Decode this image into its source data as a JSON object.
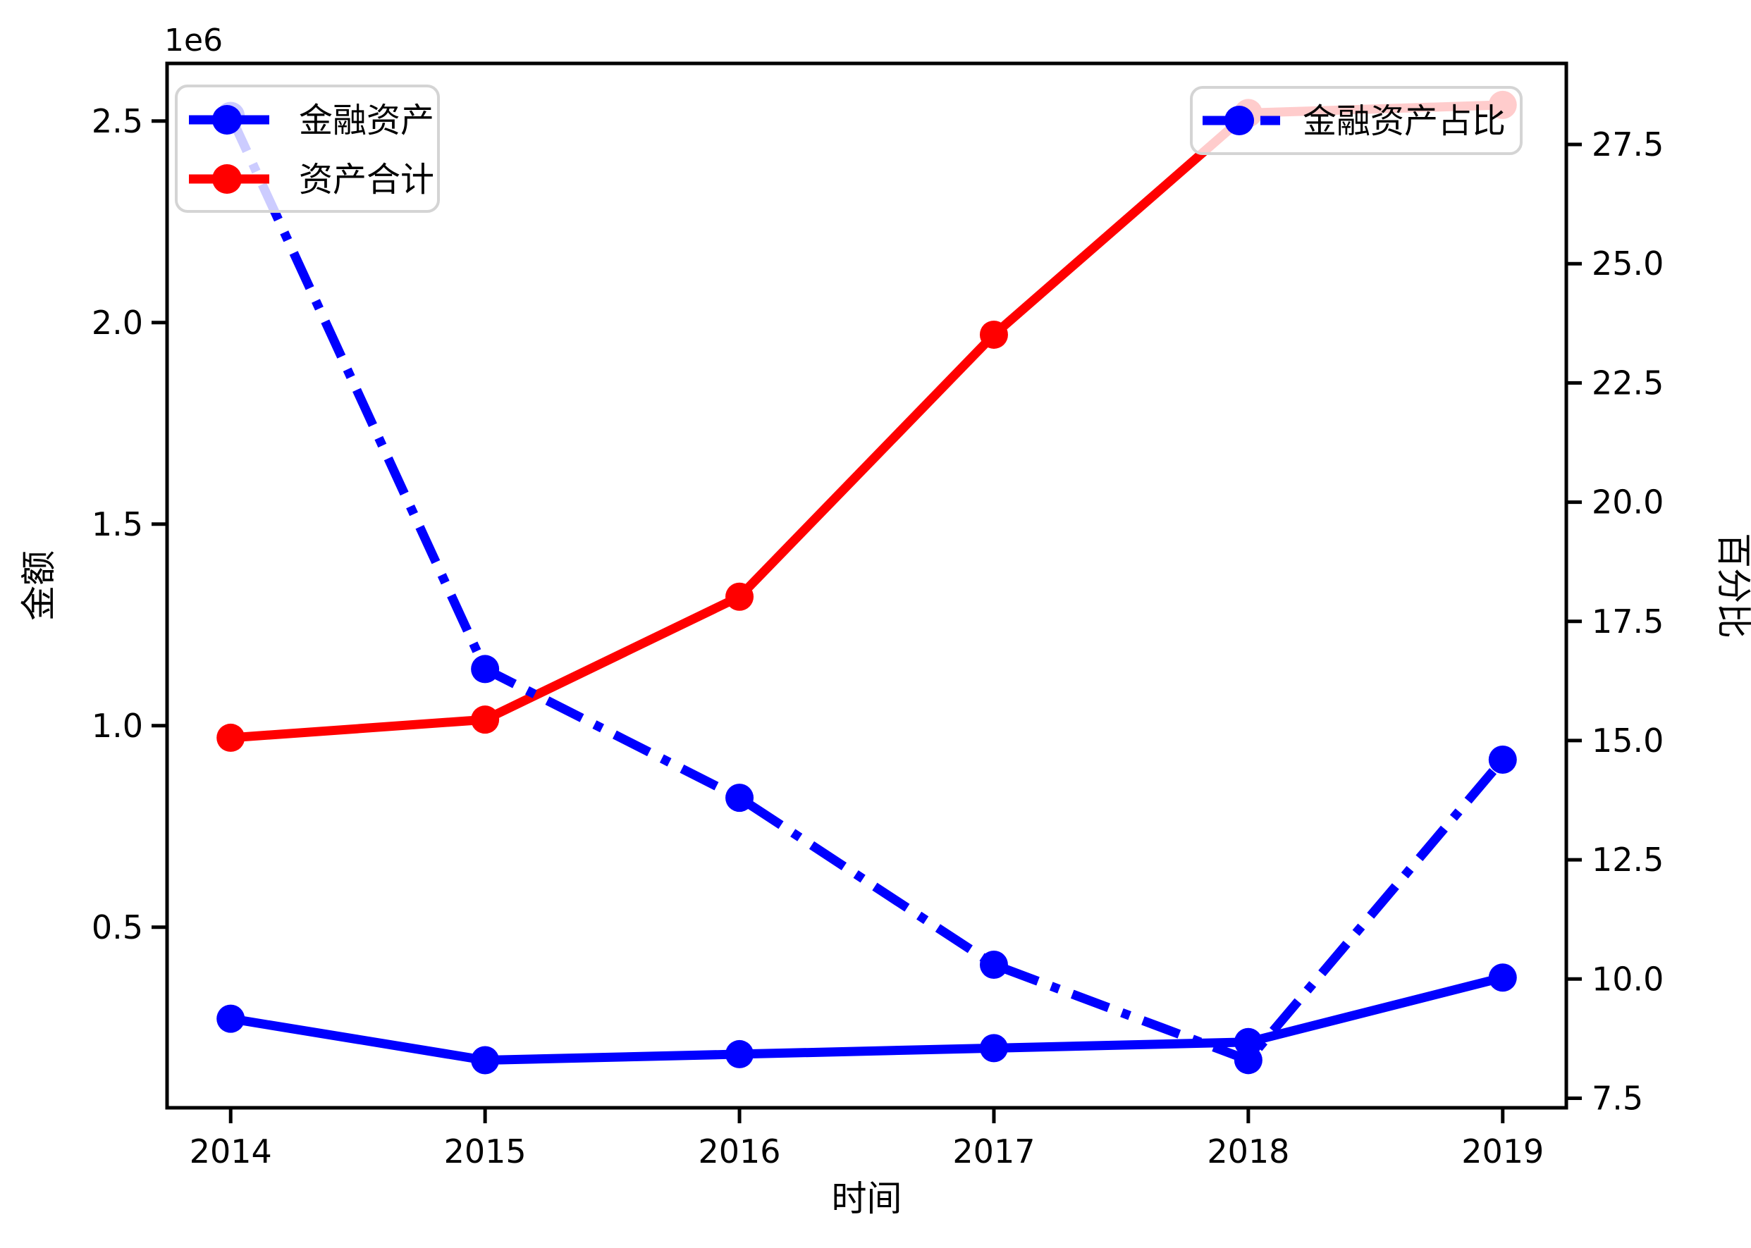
{
  "figure": {
    "background": "#ffffff",
    "offset_text": "1e6",
    "xlabel": "时间",
    "ylabel_left": "金额",
    "ylabel_right": "百分比"
  },
  "colors": {
    "blue": "#0000ff",
    "red": "#ff0000",
    "axis": "#000000",
    "legend_border": "#d4d4d4",
    "legend_fill_alpha": 0.8
  },
  "legend_left": {
    "items": [
      {
        "label": "金融资产",
        "color": "#0000ff",
        "linestyle": "solid",
        "marker": "o"
      },
      {
        "label": "资产合计",
        "color": "#ff0000",
        "linestyle": "solid",
        "marker": "o"
      }
    ]
  },
  "legend_right": {
    "items": [
      {
        "label": "金融资产占比",
        "color": "#0000ff",
        "linestyle": "dashdot",
        "marker": "o"
      }
    ]
  },
  "chart_data": {
    "type": "line",
    "title": "",
    "x": [
      2014,
      2015,
      2016,
      2017,
      2018,
      2019
    ],
    "x_ticklabels": [
      "2014",
      "2015",
      "2016",
      "2017",
      "2018",
      "2019"
    ],
    "x_axis": {
      "label": "时间",
      "range": [
        2013.75,
        2019.25
      ]
    },
    "left_axis": {
      "label": "金额",
      "offset_text": "1e6",
      "ticks": [
        500000,
        1000000,
        1500000,
        2000000,
        2500000
      ],
      "ticklabels": [
        "0.5",
        "1.0",
        "1.5",
        "2.0",
        "2.5"
      ],
      "range": [
        52000,
        2643000
      ]
    },
    "right_axis": {
      "label": "百分比",
      "ticks": [
        7.5,
        10.0,
        12.5,
        15.0,
        17.5,
        20.0,
        22.5,
        25.0,
        27.5
      ],
      "ticklabels": [
        "7.5",
        "10.0",
        "12.5",
        "15.0",
        "17.5",
        "20.0",
        "22.5",
        "25.0",
        "27.5"
      ],
      "range": [
        7.3,
        29.2
      ]
    },
    "series": [
      {
        "name": "金融资产",
        "axis": "left",
        "color": "#0000ff",
        "linestyle": "solid",
        "marker": "o",
        "values": [
          273000,
          170000,
          185000,
          200000,
          215000,
          375000
        ]
      },
      {
        "name": "资产合计",
        "axis": "left",
        "color": "#ff0000",
        "linestyle": "solid",
        "marker": "o",
        "values": [
          970000,
          1015000,
          1320000,
          1970000,
          2520000,
          2540000
        ]
      },
      {
        "name": "金融资产占比",
        "axis": "right",
        "color": "#0000ff",
        "linestyle": "dashdot",
        "marker": "o",
        "values": [
          28.1,
          16.5,
          13.8,
          10.3,
          8.3,
          14.6
        ]
      }
    ],
    "legend_positions": {
      "left_legend": "upper left",
      "right_legend": "upper right"
    },
    "grid": false
  }
}
